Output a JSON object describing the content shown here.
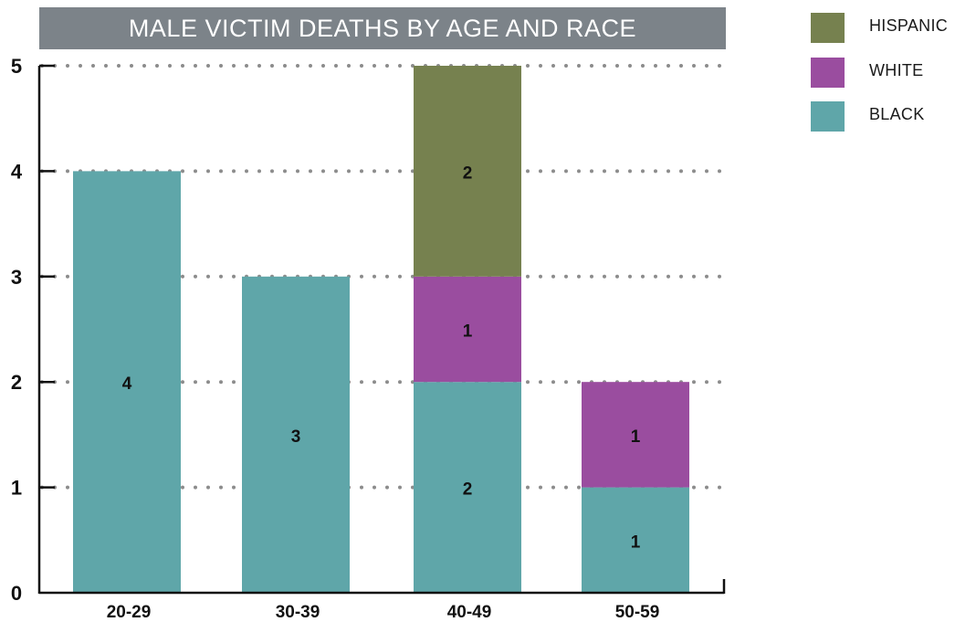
{
  "chart_data": {
    "type": "bar",
    "stacked": true,
    "title": "MALE VICTIM DEATHS BY AGE AND RACE",
    "xlabel": "",
    "ylabel": "",
    "categories": [
      "20-29",
      "30-39",
      "40-49",
      "50-59"
    ],
    "series": [
      {
        "name": "BLACK",
        "color": "#5fa6a9",
        "values": [
          4,
          3,
          2,
          1
        ]
      },
      {
        "name": "WHITE",
        "color": "#9a4d9f",
        "values": [
          0,
          0,
          1,
          1
        ]
      },
      {
        "name": "HISPANIC",
        "color": "#76814f",
        "values": [
          0,
          0,
          2,
          0
        ]
      }
    ],
    "ylim": [
      0,
      5
    ],
    "yticks": [
      0,
      1,
      2,
      3,
      4,
      5
    ],
    "grid": "dotted horizontal",
    "legend_position": "top-right",
    "legend_order": [
      "HISPANIC",
      "WHITE",
      "BLACK"
    ],
    "data_labels": true
  }
}
